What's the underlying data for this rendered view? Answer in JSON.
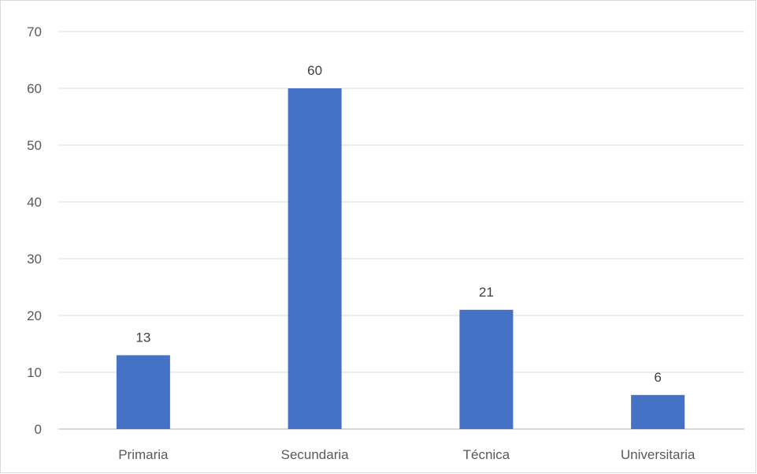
{
  "chart_data": {
    "type": "bar",
    "categories": [
      "Primaria",
      "Secundaria",
      "Técnica",
      "Universitaria"
    ],
    "series": [
      {
        "values": [
          13,
          60,
          21,
          6
        ]
      }
    ],
    "data_labels": [
      "13",
      "60",
      "21",
      "6"
    ],
    "y_ticks": [
      "0",
      "10",
      "20",
      "30",
      "40",
      "50",
      "60",
      "70"
    ],
    "ylim": [
      0,
      70
    ],
    "grid": true,
    "legend": "none",
    "bar_color": "#4472c4"
  }
}
